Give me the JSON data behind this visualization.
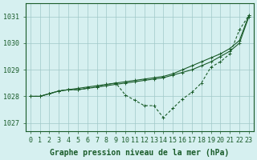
{
  "xlabel": "Graphe pression niveau de la mer (hPa)",
  "bg_color": "#d6f0f0",
  "grid_color": "#a0c8c8",
  "line_color": "#1a5c2a",
  "x": [
    0,
    1,
    2,
    3,
    4,
    5,
    6,
    7,
    8,
    9,
    10,
    11,
    12,
    13,
    14,
    15,
    16,
    17,
    18,
    19,
    20,
    21,
    22,
    23
  ],
  "line1": [
    1028.0,
    1028.0,
    1028.1,
    1028.2,
    1028.25,
    1028.25,
    1028.3,
    1028.35,
    1028.4,
    1028.45,
    1028.5,
    1028.55,
    1028.6,
    1028.65,
    1028.7,
    1028.8,
    1028.9,
    1029.0,
    1029.15,
    1029.3,
    1029.5,
    1029.7,
    1030.0,
    1031.0
  ],
  "line2": [
    1028.0,
    1028.0,
    1028.1,
    1028.2,
    1028.25,
    1028.3,
    1028.35,
    1028.4,
    1028.45,
    1028.5,
    1028.55,
    1028.6,
    1028.65,
    1028.7,
    1028.75,
    1028.85,
    1029.0,
    1029.15,
    1029.3,
    1029.45,
    1029.6,
    1029.8,
    1030.1,
    1031.05
  ],
  "line3": [
    1028.0,
    1028.0,
    1028.1,
    1028.2,
    1028.25,
    1028.25,
    1028.3,
    1028.35,
    1028.45,
    1028.5,
    1028.05,
    1027.85,
    1027.65,
    1027.65,
    1027.2,
    1027.55,
    1027.9,
    1028.15,
    1028.5,
    1029.1,
    1029.3,
    1029.6,
    1030.5,
    1031.05
  ],
  "ylim": [
    1026.7,
    1031.5
  ],
  "yticks": [
    1027,
    1028,
    1029,
    1030,
    1031
  ],
  "xticks": [
    0,
    1,
    2,
    3,
    4,
    5,
    6,
    7,
    8,
    9,
    10,
    11,
    12,
    13,
    14,
    15,
    16,
    17,
    18,
    19,
    20,
    21,
    22,
    23
  ],
  "label_fontsize": 7,
  "tick_fontsize": 6
}
